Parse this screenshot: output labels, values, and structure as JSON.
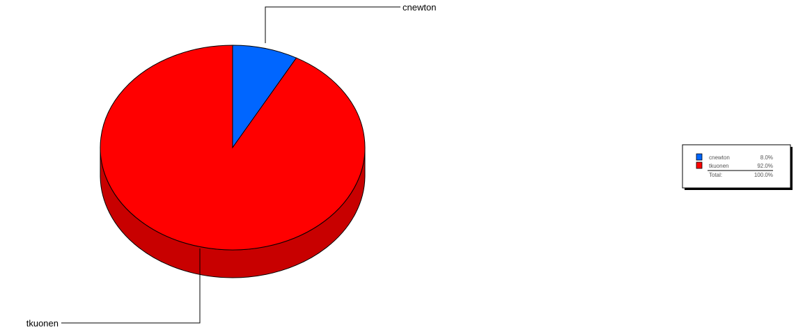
{
  "chart_data": {
    "type": "pie",
    "style": "3d",
    "slices": [
      {
        "label": "cnewton",
        "value": 8.0,
        "percent": "8.0%",
        "color": "#0066ff",
        "side_color": "#0047b3"
      },
      {
        "label": "tkuonen",
        "value": 92.0,
        "percent": "92.0%",
        "color": "#ff0000",
        "side_color": "#c80000"
      }
    ],
    "total": {
      "label": "Total:",
      "percent": "100.0%"
    },
    "legend_placement": "right"
  }
}
